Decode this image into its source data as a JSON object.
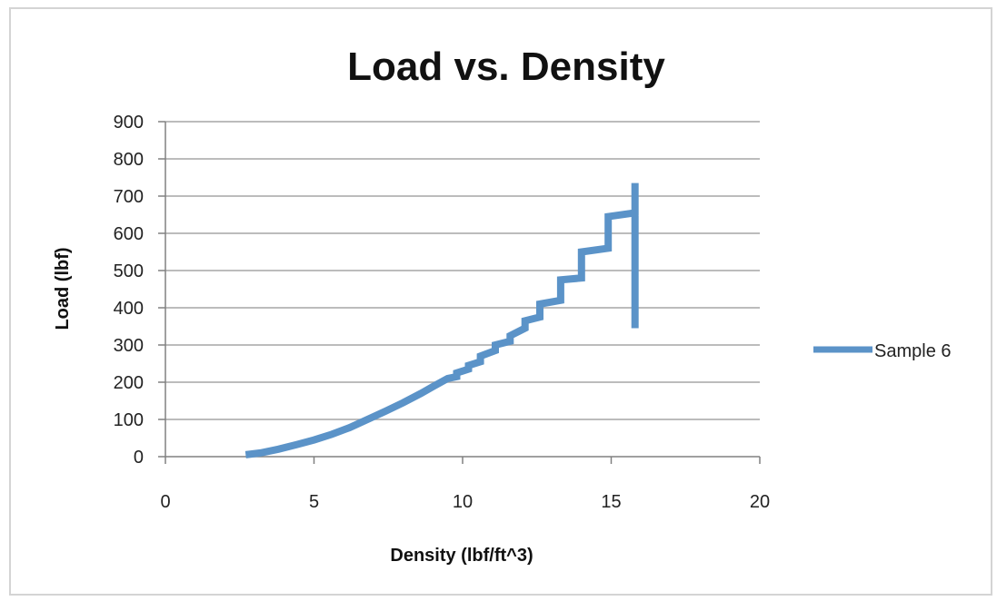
{
  "chart_data": {
    "type": "line",
    "title": "Load vs. Density",
    "xlabel": "Density (lbf/ft^3)",
    "ylabel": "Load (lbf)",
    "xlim": [
      0,
      20
    ],
    "ylim": [
      0,
      900
    ],
    "xticks": [
      0,
      5,
      10,
      15,
      20
    ],
    "yticks": [
      0,
      100,
      200,
      300,
      400,
      500,
      600,
      700,
      800,
      900
    ],
    "grid": true,
    "legend_position": "right",
    "colors": {
      "series": "#5b93c8",
      "grid": "#a6a6a6",
      "axis": "#808080"
    },
    "series": [
      {
        "name": "Sample 6",
        "x": [
          2.7,
          3.2,
          3.8,
          4.4,
          5.0,
          5.6,
          6.2,
          6.8,
          7.4,
          8.0,
          8.6,
          9.0,
          9.5,
          9.8,
          9.8,
          10.2,
          10.2,
          10.6,
          10.6,
          11.1,
          11.1,
          11.6,
          11.6,
          12.1,
          12.1,
          12.6,
          12.6,
          13.3,
          13.3,
          14.0,
          14.0,
          14.9,
          14.9,
          15.8,
          15.8,
          15.8
        ],
        "y": [
          5,
          10,
          20,
          32,
          45,
          60,
          78,
          100,
          122,
          145,
          170,
          188,
          210,
          215,
          225,
          235,
          245,
          255,
          270,
          285,
          300,
          310,
          325,
          345,
          365,
          375,
          410,
          420,
          475,
          480,
          550,
          560,
          645,
          655,
          735,
          345
        ]
      }
    ]
  }
}
